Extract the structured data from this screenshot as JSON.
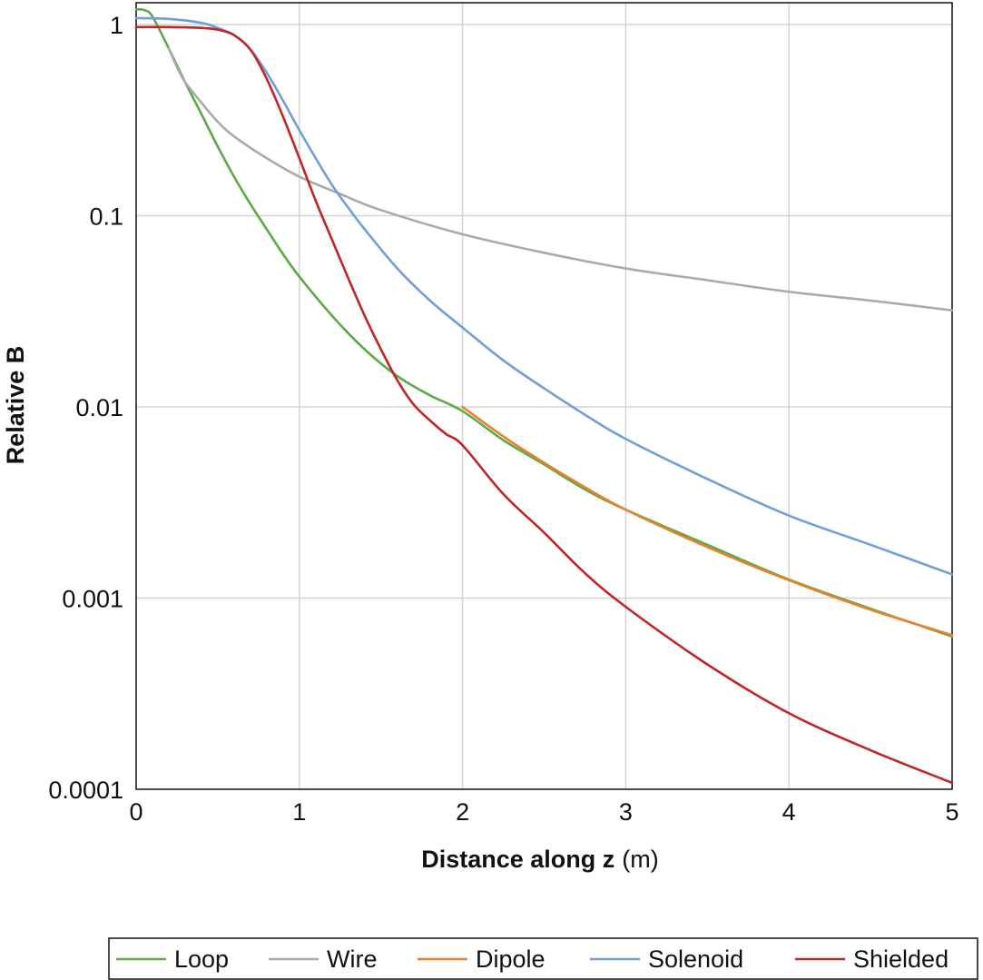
{
  "chart_data": {
    "type": "line",
    "title": "",
    "xlabel_bold": "Distance along z",
    "xlabel_unit": "(m)",
    "ylabel": "Relative B",
    "xlim": [
      0,
      5
    ],
    "ylim": [
      0.0001,
      1.2
    ],
    "yscale": "log",
    "grid": true,
    "legend_position": "bottom",
    "xticks": [
      0,
      1,
      2,
      3,
      4,
      5
    ],
    "xtick_labels": [
      "0",
      "1",
      "2",
      "3",
      "4",
      "5"
    ],
    "yticks": [
      0.0001,
      0.001,
      0.01,
      0.1,
      1
    ],
    "ytick_labels": [
      "0.0001",
      "0.001",
      "0.01",
      "0.1",
      "1"
    ],
    "series": [
      {
        "name": "Loop",
        "color": "#5aaa46",
        "x": [
          0,
          0.05,
          0.1,
          0.2,
          0.3,
          0.4,
          0.5,
          0.6,
          0.7,
          0.8,
          0.9,
          1.0,
          1.2,
          1.4,
          1.6,
          1.8,
          2.0,
          2.25,
          2.5,
          2.75,
          3.0,
          3.5,
          4.0,
          4.5,
          5.0
        ],
        "y": [
          1.2,
          1.19,
          1.1,
          0.75,
          0.5,
          0.34,
          0.23,
          0.16,
          0.115,
          0.085,
          0.063,
          0.048,
          0.03,
          0.02,
          0.0145,
          0.0115,
          0.0095,
          0.0067,
          0.005,
          0.0037,
          0.0029,
          0.0019,
          0.00125,
          0.00088,
          0.00063
        ]
      },
      {
        "name": "Wire",
        "color": "#aaaaaa",
        "x": [
          0.2,
          0.25,
          0.3,
          0.4,
          0.5,
          0.6,
          0.8,
          1.0,
          1.25,
          1.5,
          2.0,
          2.5,
          3.0,
          3.5,
          4.0,
          4.5,
          5.0
        ],
        "y": [
          0.75,
          0.6,
          0.5,
          0.39,
          0.31,
          0.26,
          0.2,
          0.16,
          0.13,
          0.107,
          0.08,
          0.064,
          0.053,
          0.046,
          0.04,
          0.036,
          0.032
        ]
      },
      {
        "name": "Dipole",
        "color": "#e8802e",
        "x": [
          2.0,
          2.25,
          2.5,
          2.75,
          3.0,
          3.5,
          4.0,
          4.5,
          5.0
        ],
        "y": [
          0.01,
          0.007,
          0.0051,
          0.0038,
          0.0029,
          0.00185,
          0.00124,
          0.00087,
          0.00064
        ]
      },
      {
        "name": "Solenoid",
        "color": "#6f9fd8",
        "x": [
          0,
          0.2,
          0.4,
          0.5,
          0.6,
          0.7,
          0.8,
          0.9,
          1.0,
          1.1,
          1.2,
          1.3,
          1.4,
          1.6,
          1.8,
          2.0,
          2.25,
          2.5,
          2.75,
          3.0,
          3.5,
          4.0,
          4.5,
          5.0
        ],
        "y": [
          1.08,
          1.07,
          1.02,
          0.96,
          0.88,
          0.74,
          0.56,
          0.4,
          0.28,
          0.2,
          0.145,
          0.11,
          0.085,
          0.053,
          0.036,
          0.026,
          0.0175,
          0.0125,
          0.0091,
          0.0068,
          0.0042,
          0.0027,
          0.0019,
          0.00133
        ]
      },
      {
        "name": "Shielded",
        "color": "#c22525",
        "x": [
          0,
          0.2,
          0.4,
          0.5,
          0.6,
          0.7,
          0.8,
          0.9,
          1.0,
          1.1,
          1.2,
          1.3,
          1.4,
          1.5,
          1.6,
          1.7,
          1.8,
          1.9,
          2.0,
          2.25,
          2.5,
          2.75,
          3.0,
          3.5,
          4.0,
          4.5,
          5.0
        ],
        "y": [
          0.97,
          0.97,
          0.96,
          0.94,
          0.88,
          0.74,
          0.52,
          0.33,
          0.2,
          0.12,
          0.075,
          0.047,
          0.03,
          0.02,
          0.0138,
          0.0103,
          0.0085,
          0.0072,
          0.0063,
          0.0035,
          0.0022,
          0.00135,
          0.0009,
          0.00045,
          0.00025,
          0.00016,
          0.000108
        ]
      }
    ]
  }
}
